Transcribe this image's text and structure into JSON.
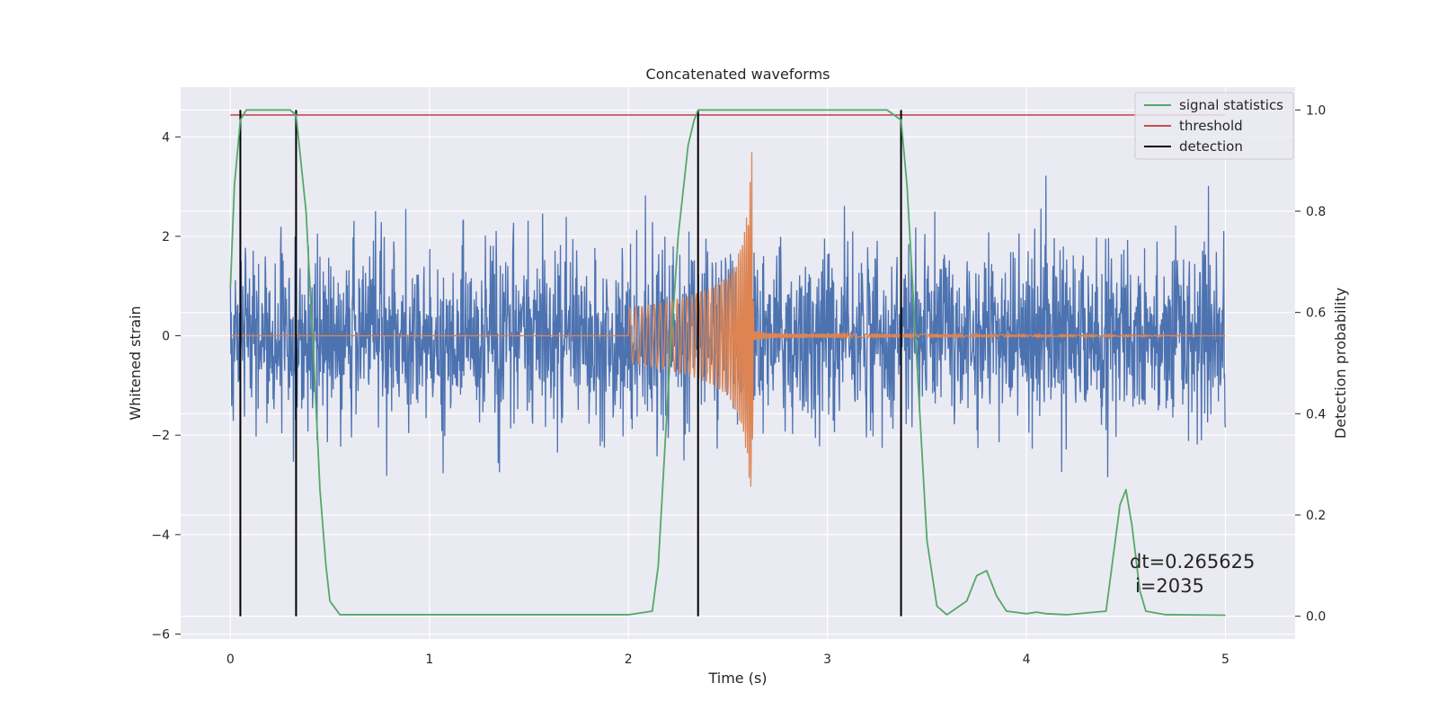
{
  "chart_data": {
    "type": "line",
    "title": "Concatenated waveforms",
    "xlabel": "Time (s)",
    "ylabel": "Whitened strain",
    "y2label": "Detection probability",
    "xlim": [
      -0.25,
      5.35
    ],
    "ylim": [
      -6.1,
      5.0
    ],
    "y2lim": [
      -0.045,
      1.045
    ],
    "xticks": [
      0,
      1,
      2,
      3,
      4,
      5
    ],
    "yticks": [
      -6,
      -4,
      -2,
      0,
      2,
      4
    ],
    "y2ticks": [
      0.0,
      0.2,
      0.4,
      0.6,
      0.8,
      1.0
    ],
    "grid": true,
    "legend_position": "top-right",
    "legend": [
      {
        "label": "signal statistics",
        "color": "#55a868"
      },
      {
        "label": "threshold",
        "color": "#c44e52"
      },
      {
        "label": "detection",
        "color": "#000000"
      }
    ],
    "colors": {
      "noise": "#4c72b0",
      "injection": "#dd8452",
      "signal_statistics": "#55a868",
      "threshold": "#c44e52",
      "detection": "#000000",
      "plot_background": "#eaeaf2",
      "grid": "#ffffff"
    },
    "series": [
      {
        "axis": "left",
        "role": "noise",
        "x_range": [
          0,
          5
        ],
        "typical_amplitude": 1.8,
        "max_amplitude": 3.3
      },
      {
        "axis": "left",
        "role": "injection",
        "x": [
          0,
          2.0,
          2.0,
          2.1,
          2.2,
          2.3,
          2.4,
          2.5,
          2.55,
          2.6,
          2.62,
          2.63,
          2.7,
          5.0
        ],
        "envelope": [
          0,
          0,
          0.55,
          0.62,
          0.7,
          0.8,
          0.95,
          1.2,
          1.6,
          2.5,
          3.7,
          0.1,
          0.05,
          0
        ]
      },
      {
        "name": "signal statistics",
        "axis": "right",
        "x": [
          0,
          0.02,
          0.05,
          0.08,
          0.1,
          0.2,
          0.3,
          0.33,
          0.38,
          0.42,
          0.45,
          0.48,
          0.5,
          0.55,
          1.0,
          2.0,
          2.12,
          2.15,
          2.2,
          2.25,
          2.3,
          2.33,
          2.35,
          2.4,
          3.3,
          3.37,
          3.4,
          3.45,
          3.5,
          3.55,
          3.6,
          3.7,
          3.75,
          3.8,
          3.85,
          3.9,
          4.0,
          4.05,
          4.1,
          4.2,
          4.4,
          4.43,
          4.47,
          4.5,
          4.53,
          4.57,
          4.6,
          4.7,
          5.0
        ],
        "y": [
          0.65,
          0.85,
          0.98,
          1.0,
          1.0,
          1.0,
          1.0,
          0.99,
          0.8,
          0.5,
          0.25,
          0.1,
          0.03,
          0.003,
          0.003,
          0.003,
          0.01,
          0.1,
          0.45,
          0.75,
          0.93,
          0.98,
          1.0,
          1.0,
          1.0,
          0.98,
          0.85,
          0.5,
          0.15,
          0.02,
          0.003,
          0.03,
          0.08,
          0.09,
          0.04,
          0.01,
          0.005,
          0.008,
          0.005,
          0.003,
          0.01,
          0.1,
          0.22,
          0.25,
          0.18,
          0.05,
          0.01,
          0.003,
          0.002
        ]
      },
      {
        "name": "threshold",
        "axis": "right",
        "x": [
          0,
          5
        ],
        "y": [
          0.99,
          0.99
        ]
      }
    ],
    "detections": [
      0.05,
      0.33,
      2.35,
      3.37
    ],
    "annotations": [
      "dt=0.265625",
      "i=2035"
    ]
  }
}
